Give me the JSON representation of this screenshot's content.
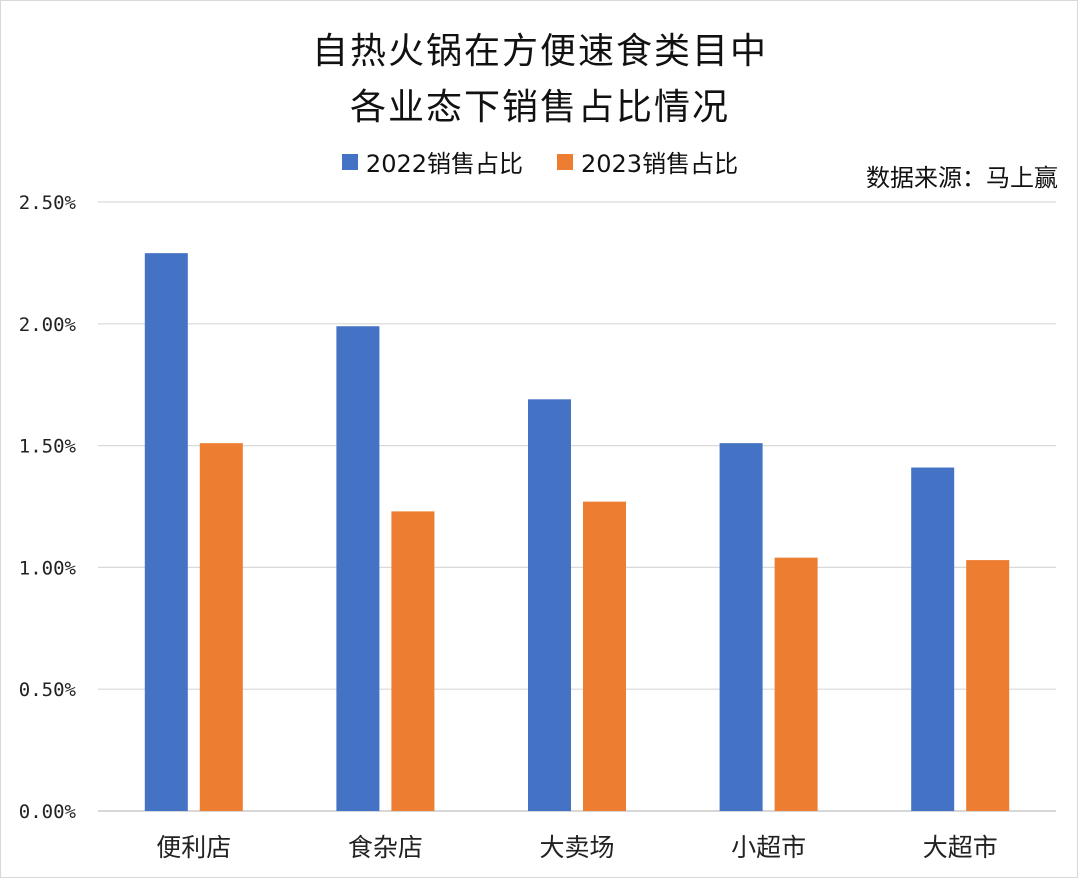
{
  "chart_data": {
    "type": "bar",
    "title_line1": "自热火锅在方便速食类目中",
    "title_line2": "各业态下销售占比情况",
    "source": "数据来源：马上赢",
    "categories": [
      "便利店",
      "食杂店",
      "大卖场",
      "小超市",
      "大超市"
    ],
    "series": [
      {
        "name": "2022销售占比",
        "color": "#4472C4",
        "values": [
          2.29,
          1.99,
          1.69,
          1.51,
          1.41
        ]
      },
      {
        "name": "2023销售占比",
        "color": "#ED7D31",
        "values": [
          1.51,
          1.23,
          1.27,
          1.04,
          1.03
        ]
      }
    ],
    "ylim": [
      0,
      2.5
    ],
    "yticks": [
      "0.00%",
      "0.50%",
      "1.00%",
      "1.50%",
      "2.00%",
      "2.50%"
    ],
    "grid": true,
    "legend_position": "top"
  }
}
